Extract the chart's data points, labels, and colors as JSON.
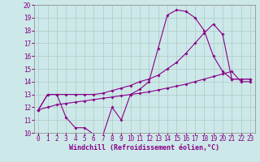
{
  "xlabel": "Windchill (Refroidissement éolien,°C)",
  "background_color": "#cce8e8",
  "grid_color": "#b0c8c8",
  "line_color": "#880088",
  "xlim": [
    -0.5,
    23.5
  ],
  "ylim": [
    10,
    20
  ],
  "yticks": [
    10,
    11,
    12,
    13,
    14,
    15,
    16,
    17,
    18,
    19,
    20
  ],
  "xticks": [
    0,
    1,
    2,
    3,
    4,
    5,
    6,
    7,
    8,
    9,
    10,
    11,
    12,
    13,
    14,
    15,
    16,
    17,
    18,
    19,
    20,
    21,
    22,
    23
  ],
  "line1_x": [
    0,
    1,
    2,
    3,
    4,
    5,
    6,
    7,
    8,
    9,
    10,
    11,
    12,
    13,
    14,
    15,
    16,
    17,
    18,
    19,
    20,
    21,
    22,
    23
  ],
  "line1_y": [
    11.8,
    13.0,
    13.0,
    11.2,
    10.4,
    10.4,
    9.9,
    9.8,
    12.0,
    11.0,
    13.0,
    13.4,
    14.0,
    16.6,
    19.2,
    19.6,
    19.5,
    19.0,
    18.0,
    16.0,
    14.8,
    14.2,
    14.2,
    14.2
  ],
  "line2_x": [
    0,
    1,
    2,
    3,
    4,
    5,
    6,
    7,
    8,
    9,
    10,
    11,
    12,
    13,
    14,
    15,
    16,
    17,
    18,
    19,
    20,
    21,
    22,
    23
  ],
  "line2_y": [
    11.8,
    13.0,
    13.0,
    13.0,
    13.0,
    13.0,
    13.0,
    13.1,
    13.3,
    13.5,
    13.7,
    14.0,
    14.2,
    14.5,
    15.0,
    15.5,
    16.2,
    17.0,
    17.8,
    18.5,
    17.7,
    14.2,
    14.2,
    14.2
  ],
  "line3_x": [
    0,
    1,
    2,
    3,
    4,
    5,
    6,
    7,
    8,
    9,
    10,
    11,
    12,
    13,
    14,
    15,
    16,
    17,
    18,
    19,
    20,
    21,
    22,
    23
  ],
  "line3_y": [
    11.8,
    12.0,
    12.2,
    12.3,
    12.4,
    12.5,
    12.6,
    12.7,
    12.8,
    12.9,
    13.0,
    13.1,
    13.2,
    13.35,
    13.5,
    13.65,
    13.8,
    14.0,
    14.2,
    14.4,
    14.6,
    14.8,
    14.0,
    14.0
  ],
  "tick_fontsize": 5.5,
  "xlabel_fontsize": 6,
  "marker_size": 2.0
}
